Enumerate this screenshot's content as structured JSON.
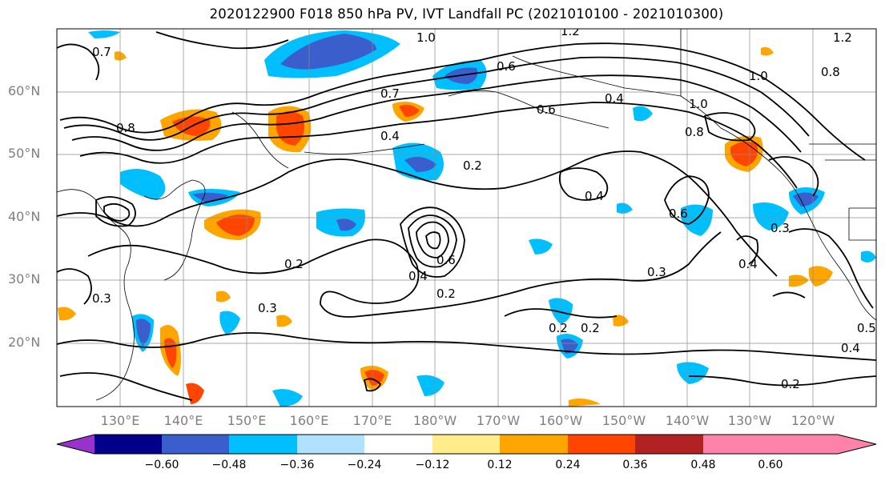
{
  "title": "2020122900 F018 850 hPa PV, IVT Landfall PC (2021010100 - 2021010300)",
  "lat_labels": [
    "60°N",
    "50°N",
    "40°N",
    "30°N",
    "20°N"
  ],
  "lon_labels": [
    "130°E",
    "140°E",
    "150°E",
    "160°E",
    "170°E",
    "180°W",
    "170°W",
    "160°W",
    "150°W",
    "140°W",
    "130°W",
    "120°W"
  ],
  "colorbar": {
    "labels": [
      "−0.60",
      "−0.48",
      "−0.36",
      "−0.24",
      "−0.12",
      "0.12",
      "0.24",
      "0.36",
      "0.48",
      "0.60"
    ],
    "colors": [
      "#9932cc",
      "#00008b",
      "#3a5fcd",
      "#00bfff",
      "#b0e2ff",
      "#ffffff",
      "#ffec8b",
      "#ffa500",
      "#ff4500",
      "#b22222",
      "#ff82ab"
    ]
  },
  "contour_labels": [
    "1.0",
    "1.2",
    "1.2",
    "1.0",
    "0.8",
    "0.6",
    "0.7",
    "0.4",
    "0.6",
    "0.4",
    "1.0",
    "0.8",
    "0.8",
    "0.6",
    "0.2",
    "0.4",
    "0.6",
    "0.4",
    "0.3",
    "0.2",
    "0.3",
    "0.4",
    "0.2",
    "0.2",
    "0.2",
    "0.3",
    "0.2",
    "0.4",
    "0.5",
    "0.7",
    "0.3"
  ]
}
